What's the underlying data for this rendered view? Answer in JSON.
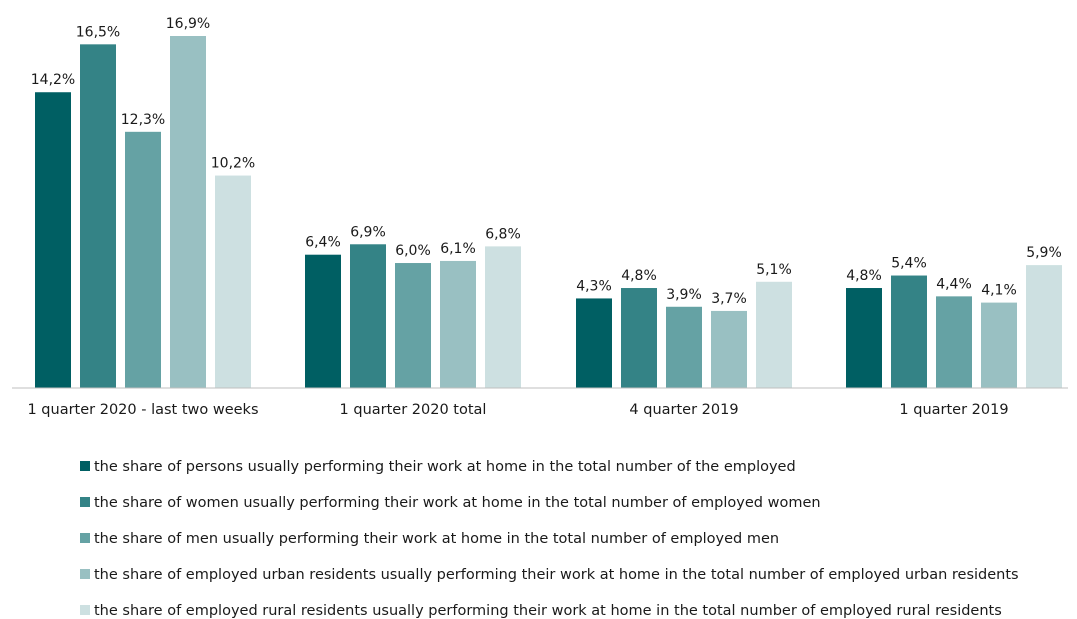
{
  "chart_data": {
    "type": "bar",
    "categories": [
      "1 quarter 2020 - last two weeks",
      "1 quarter 2020 total",
      "4 quarter 2019",
      "1 quarter 2019"
    ],
    "series": [
      {
        "name": "the share of persons usually performing their work at home in the total number of the employed",
        "color": "#005f63",
        "values": [
          14.2,
          6.4,
          4.3,
          4.8
        ],
        "labels": [
          "14,2%",
          "6,4%",
          "4,3%",
          "4,8%"
        ]
      },
      {
        "name": "the share of women usually performing their work at home in the total number of employed women",
        "color": "#348386",
        "values": [
          16.5,
          6.9,
          4.8,
          5.4
        ],
        "labels": [
          "16,5%",
          "6,9%",
          "4,8%",
          "5,4%"
        ]
      },
      {
        "name": "the share of men usually performing their work at home in the total number of employed men",
        "color": "#65a2a4",
        "values": [
          12.3,
          6.0,
          3.9,
          4.4
        ],
        "labels": [
          "12,3%",
          "6,0%",
          "3,9%",
          "4,4%"
        ]
      },
      {
        "name": "the share of employed urban residents usually performing their work at home in the total number of employed urban residents",
        "color": "#99c0c2",
        "values": [
          16.9,
          6.1,
          3.7,
          4.1
        ],
        "labels": [
          "16,9%",
          "6,1%",
          "3,7%",
          "4,1%"
        ]
      },
      {
        "name": "the share of employed rural residents usually performing their work at home in the total number of employed rural residents",
        "color": "#cde0e1",
        "values": [
          10.2,
          6.8,
          5.1,
          5.9
        ],
        "labels": [
          "10,2%",
          "6,8%",
          "5,1%",
          "5,9%"
        ]
      }
    ],
    "ylim": [
      0,
      16.9
    ],
    "legend_position": "bottom",
    "grid": false
  }
}
